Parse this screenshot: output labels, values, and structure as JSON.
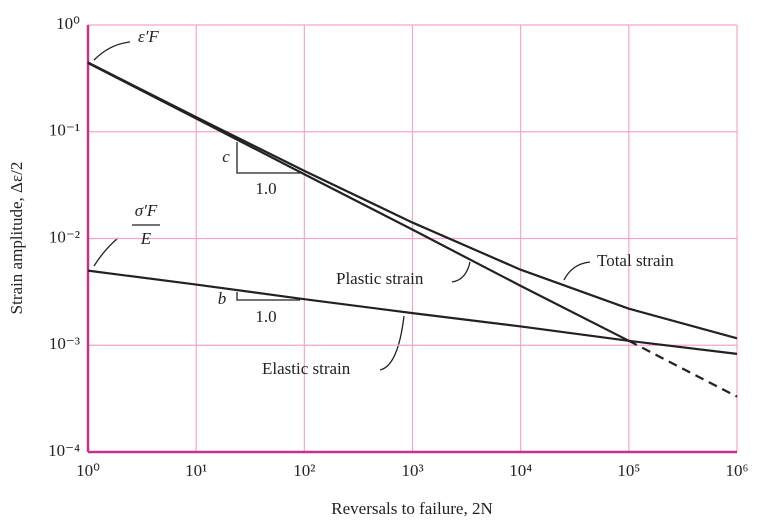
{
  "chart_data": {
    "type": "line",
    "xlabel": "Reversals to failure, 2N",
    "ylabel": "Strain amplitude, Δε/2",
    "log_x": true,
    "log_y": true,
    "grid": true,
    "grid_color": "#f2a6cc",
    "axis_color": "#c2338c",
    "x": [
      1,
      10,
      100,
      1000,
      10000,
      100000,
      1000000
    ],
    "series": [
      {
        "name": "Elastic strain",
        "color": "#222222",
        "style": "solid",
        "values": [
          0.005,
          0.0037,
          0.0027,
          0.002,
          0.0015,
          0.0011,
          0.00083
        ]
      },
      {
        "name": "Plastic strain",
        "color": "#222222",
        "style": "solid",
        "values": [
          0.44,
          0.133,
          0.04,
          0.0121,
          0.0036,
          0.0011,
          null
        ]
      },
      {
        "color": "#222222",
        "style": "dashed",
        "values": [
          null,
          null,
          null,
          null,
          null,
          0.0011,
          0.00033
        ]
      },
      {
        "name": "Total strain",
        "color": "#222222",
        "style": "solid",
        "values": [
          0.445,
          0.137,
          0.043,
          0.0141,
          0.0051,
          0.0022,
          0.00116
        ]
      }
    ],
    "xlim": [
      1,
      1000000
    ],
    "ylim": [
      0.0001,
      1
    ],
    "xticks": [
      {
        "value": 1,
        "label": "10⁰"
      },
      {
        "value": 10,
        "label": "10¹"
      },
      {
        "value": 100,
        "label": "10²"
      },
      {
        "value": 1000,
        "label": "10³"
      },
      {
        "value": 10000,
        "label": "10⁴"
      },
      {
        "value": 100000,
        "label": "10⁵"
      },
      {
        "value": 1000000,
        "label": "10⁶"
      }
    ],
    "yticks": [
      {
        "value": 0.0001,
        "label": "10⁻⁴"
      },
      {
        "value": 0.001,
        "label": "10⁻³"
      },
      {
        "value": 0.01,
        "label": "10⁻²"
      },
      {
        "value": 0.1,
        "label": "10⁻¹"
      },
      {
        "value": 1,
        "label": "10⁰"
      }
    ],
    "annotations": [
      "ε′F",
      "σ′F",
      "E",
      "c",
      "1.0",
      "b",
      "1.0"
    ]
  }
}
